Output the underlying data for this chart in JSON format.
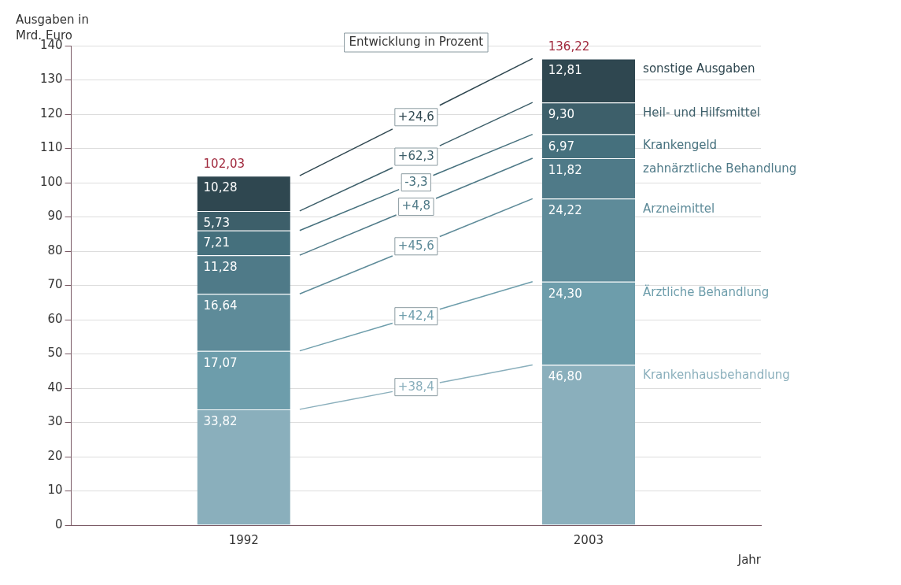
{
  "chart_data": {
    "type": "bar",
    "stacked": true,
    "ylabel": "Ausgaben in Mrd. Euro",
    "xlabel": "Jahr",
    "categories": [
      "1992",
      "2003"
    ],
    "series": [
      {
        "name": "Krankenhausbehandlung",
        "color": "#8aafbc",
        "values": [
          33.82,
          46.8
        ],
        "value_labels": [
          "33,82",
          "46,80"
        ]
      },
      {
        "name": "Ärztliche Behandlung",
        "color": "#6d9dab",
        "values": [
          17.07,
          24.3
        ],
        "value_labels": [
          "17,07",
          "24,30"
        ]
      },
      {
        "name": "Arzneimittel",
        "color": "#5e8b99",
        "values": [
          16.64,
          24.22
        ],
        "value_labels": [
          "16,64",
          "24,22"
        ]
      },
      {
        "name": "zahnärztliche Behandlung",
        "color": "#4f7a88",
        "values": [
          11.28,
          11.82
        ],
        "value_labels": [
          "11,28",
          "11,82"
        ]
      },
      {
        "name": "Krankengeld",
        "color": "#45707d",
        "values": [
          7.21,
          6.97
        ],
        "value_labels": [
          "7,21",
          "6,97"
        ]
      },
      {
        "name": "Heil- und Hilfsmittel",
        "color": "#3d5f6a",
        "values": [
          5.73,
          9.3
        ],
        "value_labels": [
          "5,73",
          "9,30"
        ]
      },
      {
        "name": "sonstige Ausgaben",
        "color": "#2f4750",
        "values": [
          10.28,
          12.81
        ],
        "value_labels": [
          "10,28",
          "12,81"
        ]
      }
    ],
    "totals": [
      "102,03",
      "136,22"
    ],
    "annotations": [
      "Entwicklung in Prozent",
      "+38,4",
      "+42,4",
      "+45,6",
      "+4,8",
      "-3,3",
      "+62,3",
      "+24,6"
    ],
    "ylim": [
      0,
      140
    ],
    "yticks": [
      0,
      10,
      20,
      30,
      40,
      50,
      60,
      70,
      80,
      90,
      100,
      110,
      120,
      130,
      140
    ],
    "grid": "y",
    "legend": false
  }
}
